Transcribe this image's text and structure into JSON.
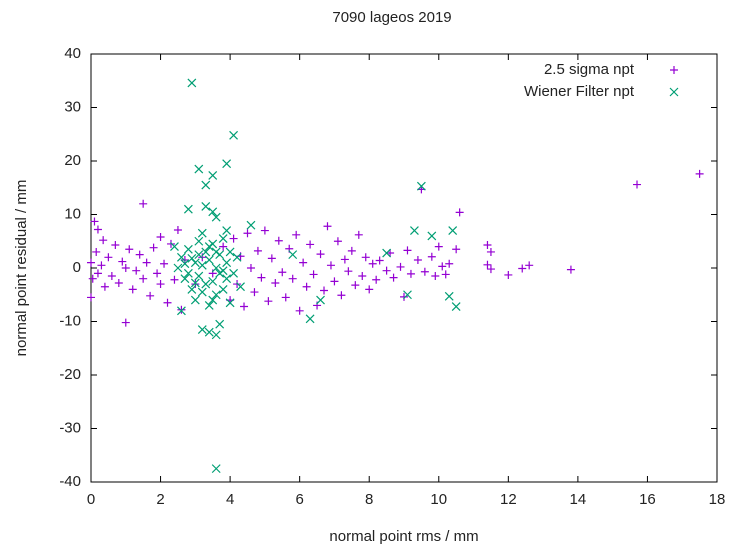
{
  "chart_data": {
    "type": "scatter",
    "title": "7090 lageos 2019",
    "x_label": "normal point rms / mm",
    "y_label": "normal point residual / mm",
    "xlim": [
      0,
      18
    ],
    "ylim": [
      -40,
      40
    ],
    "xticks": [
      0,
      2,
      4,
      6,
      8,
      10,
      12,
      14,
      16,
      18
    ],
    "yticks": [
      -40,
      -30,
      -20,
      -10,
      0,
      10,
      20,
      30,
      40
    ],
    "grid": false,
    "legend": "top-right",
    "series": [
      {
        "name": "2.5 sigma npt",
        "color": "#9400d3",
        "marker": "plus",
        "x": [
          0,
          0,
          0.05,
          0.1,
          0.15,
          0.2,
          0.2,
          0.3,
          0.35,
          0.4,
          0.5,
          0.6,
          0.7,
          0.8,
          0.9,
          1.0,
          1.0,
          1.1,
          1.2,
          1.3,
          1.4,
          1.5,
          1.5,
          1.6,
          1.7,
          1.8,
          1.9,
          2.0,
          2.0,
          2.1,
          2.2,
          2.3,
          2.4,
          2.5,
          2.6,
          2.7,
          4.0,
          4.1,
          4.2,
          4.3,
          4.4,
          4.5,
          4.6,
          4.7,
          4.8,
          4.9,
          5.0,
          5.1,
          5.2,
          5.3,
          5.4,
          5.5,
          5.6,
          5.7,
          5.8,
          5.9,
          6.0,
          6.1,
          6.2,
          6.3,
          6.4,
          6.5,
          6.6,
          6.7,
          6.8,
          6.9,
          7.0,
          7.1,
          7.2,
          7.3,
          7.4,
          7.5,
          7.6,
          7.7,
          7.8,
          7.9,
          8.0,
          8.1,
          8.2,
          8.3,
          8.5,
          8.6,
          8.7,
          8.9,
          9.0,
          9.1,
          9.2,
          9.4,
          9.5,
          9.6,
          9.8,
          9.9,
          10.0,
          10.1,
          10.2,
          10.3,
          10.5,
          10.6,
          11.4,
          11.4,
          11.5,
          11.5,
          12.0,
          12.4,
          12.6,
          13.8,
          15.7,
          17.5,
          3.0,
          3.2,
          3.5,
          3.8
        ],
        "values": [
          -5.5,
          1,
          -2,
          8.7,
          3,
          7.2,
          -1,
          0.5,
          5.2,
          -3.5,
          2,
          -1.5,
          4.3,
          -2.8,
          1.2,
          -10.2,
          0,
          3.5,
          -4,
          -0.5,
          2.5,
          12,
          -2,
          1,
          -5.2,
          3.8,
          -1,
          5.8,
          -3,
          0.8,
          -6.5,
          4.5,
          -2.2,
          7.1,
          -7.8,
          1.5,
          -6,
          5.5,
          -3,
          2.2,
          -7.2,
          6.5,
          0,
          -4.5,
          3.2,
          -1.8,
          7,
          -6.2,
          1.8,
          -2.8,
          5.1,
          -0.8,
          -5.5,
          3.6,
          -2,
          6.2,
          -8,
          1,
          -3.5,
          4.4,
          -1.2,
          -7,
          2.6,
          -4.2,
          7.8,
          0.5,
          -2.5,
          5,
          -5.1,
          1.6,
          -0.6,
          3.2,
          -3.2,
          6.2,
          -1.5,
          2,
          -4,
          0.8,
          -2.2,
          1.4,
          -0.5,
          2.8,
          -1.8,
          0.2,
          -5.4,
          3.3,
          -1.1,
          1.5,
          14.7,
          -0.7,
          2.1,
          -1.5,
          4,
          0.3,
          -1.2,
          0.8,
          3.5,
          10.4,
          4.3,
          0.6,
          3.0,
          -0.2,
          -1.3,
          -0.1,
          0.5,
          -0.3,
          15.6,
          17.6,
          -3,
          2,
          -1,
          4
        ]
      },
      {
        "name": "Wiener Filter npt",
        "color": "#009e73",
        "marker": "cross",
        "x": [
          2.9,
          4.1,
          3.9,
          3.1,
          3.5,
          3.3,
          3.6,
          9.5,
          10.5,
          10.3,
          9.3,
          10.4,
          9.8,
          6.3,
          6.6,
          4.6,
          5.8,
          8.5,
          9.1,
          3.6,
          3.4,
          3.2,
          3.7,
          3.5,
          3.3,
          2.8,
          3.6,
          3.9,
          2.6,
          2.4,
          2.5,
          2.6,
          2.7,
          2.8,
          2.9,
          3.0,
          3.0,
          3.1,
          3.1,
          3.2,
          3.2,
          3.3,
          3.3,
          3.4,
          3.4,
          3.5,
          3.5,
          3.6,
          3.6,
          3.7,
          3.7,
          3.8,
          3.8,
          3.9,
          3.9,
          4.0,
          4.0,
          4.1,
          4.2,
          4.3,
          2.7,
          2.9,
          3.0,
          3.2,
          3.4,
          3.6,
          3.8,
          2.8,
          3.1,
          3.5
        ],
        "values": [
          34.6,
          24.8,
          19.5,
          18.5,
          17.3,
          15.5,
          -37.5,
          15.3,
          -7.2,
          -5.3,
          7,
          7,
          6,
          -9.5,
          -6,
          8,
          2.5,
          2.8,
          -5,
          -12.5,
          -12,
          -11.5,
          -10.5,
          10.5,
          11.5,
          11,
          9.5,
          7,
          -8,
          4,
          0,
          2,
          -2,
          3.5,
          -4,
          1,
          -6,
          5,
          -1.5,
          6.5,
          0.5,
          -3,
          3,
          -7,
          1.5,
          -2.5,
          4.5,
          -5,
          0,
          2.5,
          -1,
          -4,
          5.5,
          -2,
          1,
          -6.5,
          3,
          -1,
          2,
          -3.5,
          0.8,
          1.8,
          -2.8,
          -4.5,
          4,
          3,
          -0.5,
          -1,
          2.5,
          -6
        ]
      }
    ]
  }
}
